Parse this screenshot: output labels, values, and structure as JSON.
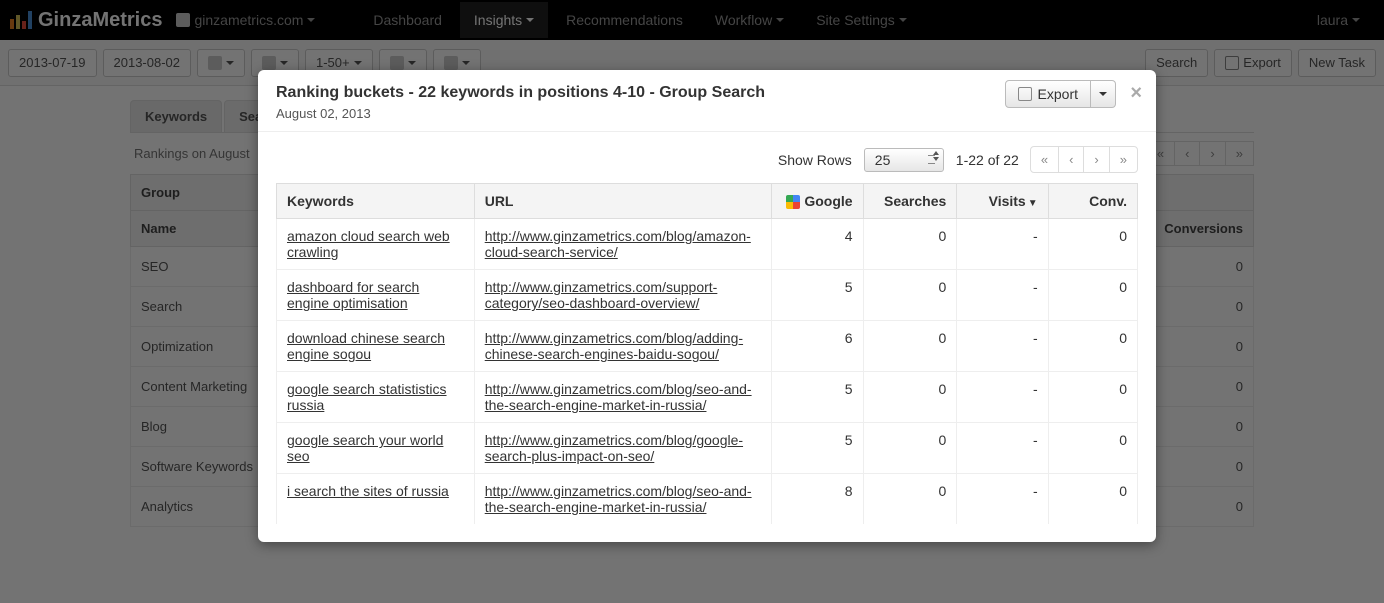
{
  "navbar": {
    "brand": "GinzaMetrics",
    "site_picker": "ginzametrics.com",
    "items": [
      "Dashboard",
      "Insights",
      "Recommendations",
      "Workflow",
      "Site Settings"
    ],
    "active_index": 1,
    "user": "laura"
  },
  "toolbar": {
    "date_from": "2013-07-19",
    "date_to": "2013-08-02",
    "range_label": "1-50+",
    "search_btn": "Search",
    "export_btn": "Export",
    "new_task_btn": "New Task"
  },
  "background": {
    "tabs": [
      "Keywords",
      "Search"
    ],
    "subtitle": "Rankings on August",
    "group_header": "Group",
    "name_header": "Name",
    "conversions_header": "Conversions",
    "rows": [
      {
        "name": "SEO",
        "conv": "0"
      },
      {
        "name": "Search",
        "conv": "0"
      },
      {
        "name": "Optimization",
        "conv": "0"
      },
      {
        "name": "Content Marketing",
        "conv": "0"
      },
      {
        "name": "Blog",
        "conv": "0"
      },
      {
        "name": "Software Keywords",
        "conv": "0"
      },
      {
        "name": "Analytics",
        "conv": "0"
      }
    ],
    "pager": [
      "«",
      "‹",
      "›",
      "»"
    ]
  },
  "modal": {
    "title": "Ranking buckets - 22 keywords in positions 4-10 - Group Search",
    "date": "August 02, 2013",
    "export_label": "Export",
    "show_rows_label": "Show Rows",
    "rows_value": "25",
    "range_text": "1-22 of 22",
    "pager": [
      "«",
      "‹",
      "›",
      "»"
    ],
    "columns": {
      "keywords": "Keywords",
      "url": "URL",
      "google": "Google",
      "searches": "Searches",
      "visits": "Visits",
      "conv": "Conv."
    },
    "rows": [
      {
        "kw": "amazon cloud search web crawling",
        "url": "http://www.ginzametrics.com/blog/amazon-cloud-search-service/",
        "g": "4",
        "s": "0",
        "v": "-",
        "c": "0"
      },
      {
        "kw": "dashboard for search engine optimisation",
        "url": "http://www.ginzametrics.com/support-category/seo-dashboard-overview/",
        "g": "5",
        "s": "0",
        "v": "-",
        "c": "0"
      },
      {
        "kw": "download chinese search engine sogou",
        "url": "http://www.ginzametrics.com/blog/adding-chinese-search-engines-baidu-sogou/",
        "g": "6",
        "s": "0",
        "v": "-",
        "c": "0"
      },
      {
        "kw": "google search statististics russia",
        "url": "http://www.ginzametrics.com/blog/seo-and-the-search-engine-market-in-russia/",
        "g": "5",
        "s": "0",
        "v": "-",
        "c": "0"
      },
      {
        "kw": "google search your world seo",
        "url": "http://www.ginzametrics.com/blog/google-search-plus-impact-on-seo/",
        "g": "5",
        "s": "0",
        "v": "-",
        "c": "0"
      },
      {
        "kw": "i search the sites of russia",
        "url": "http://www.ginzametrics.com/blog/seo-and-the-search-engine-market-in-russia/",
        "g": "8",
        "s": "0",
        "v": "-",
        "c": "0"
      }
    ]
  }
}
